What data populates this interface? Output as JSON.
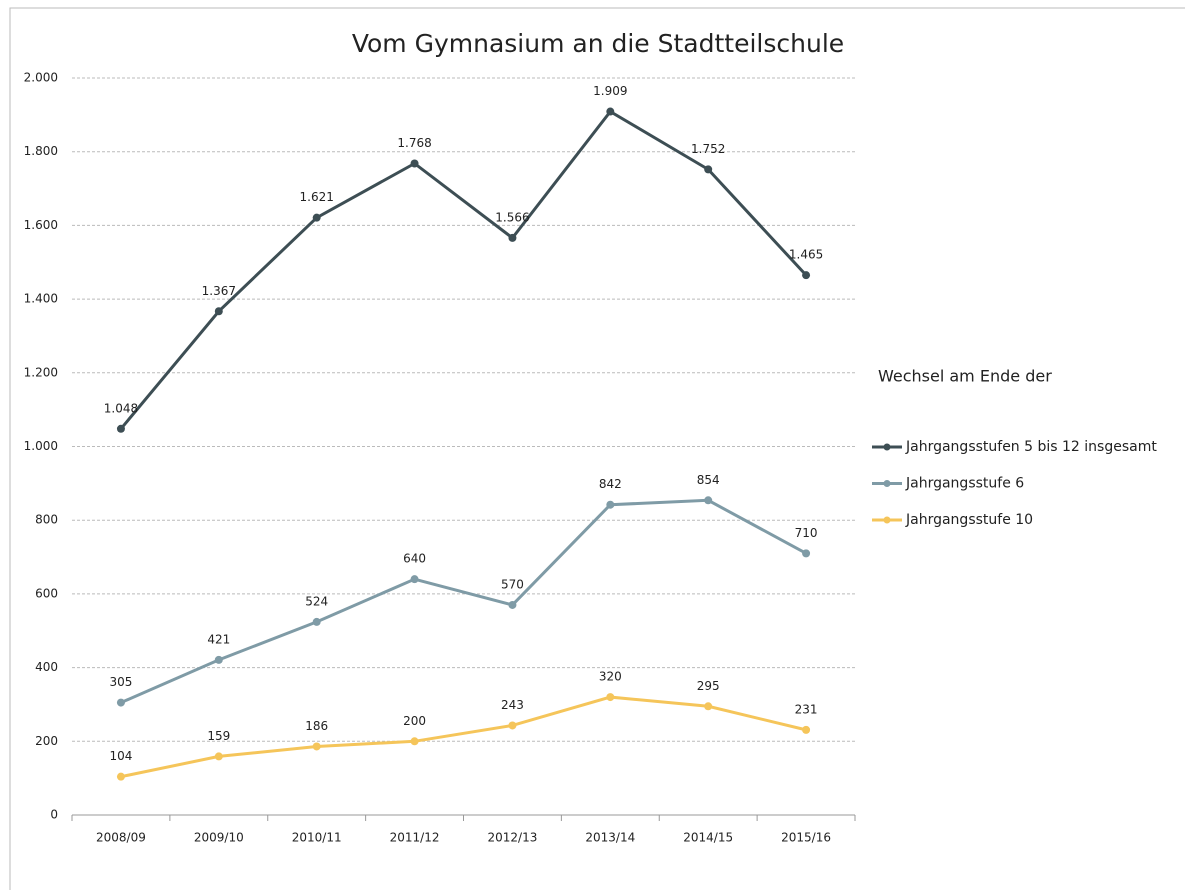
{
  "chart_data": {
    "type": "line",
    "title": "Vom Gymnasium an die Stadtteilschule",
    "legend_title": "Wechsel am Ende der",
    "categories": [
      "2008/09",
      "2009/10",
      "2010/11",
      "2011/12",
      "2012/13",
      "2013/14",
      "2014/15",
      "2015/16"
    ],
    "series": [
      {
        "name": "Jahrgangsstufen 5 bis 12 insgesamt",
        "color": "#3d4e54",
        "values": [
          1048,
          1367,
          1621,
          1768,
          1566,
          1909,
          1752,
          1465
        ],
        "value_labels": [
          "1.048",
          "1.367",
          "1.621",
          "1.768",
          "1.566",
          "1.909",
          "1.752",
          "1.465"
        ]
      },
      {
        "name": "Jahrgangsstufe 6",
        "color": "#7f9ba6",
        "values": [
          305,
          421,
          524,
          640,
          570,
          842,
          854,
          710
        ]
      },
      {
        "name": "Jahrgangsstufe 10",
        "color": "#f5c55a",
        "values": [
          104,
          159,
          186,
          200,
          243,
          320,
          295,
          231
        ]
      }
    ],
    "ylim": [
      0,
      2000
    ],
    "yticks": [
      0,
      200,
      400,
      600,
      800,
      {
        "value": 1000,
        "label": "1.000"
      },
      {
        "value": 1200,
        "label": "1.200"
      },
      {
        "value": 1400,
        "label": "1.400"
      },
      {
        "value": 1600,
        "label": "1.600"
      },
      {
        "value": 1800,
        "label": "1.800"
      },
      {
        "value": 2000,
        "label": "2.000"
      }
    ],
    "grid": true,
    "legend": "right"
  }
}
